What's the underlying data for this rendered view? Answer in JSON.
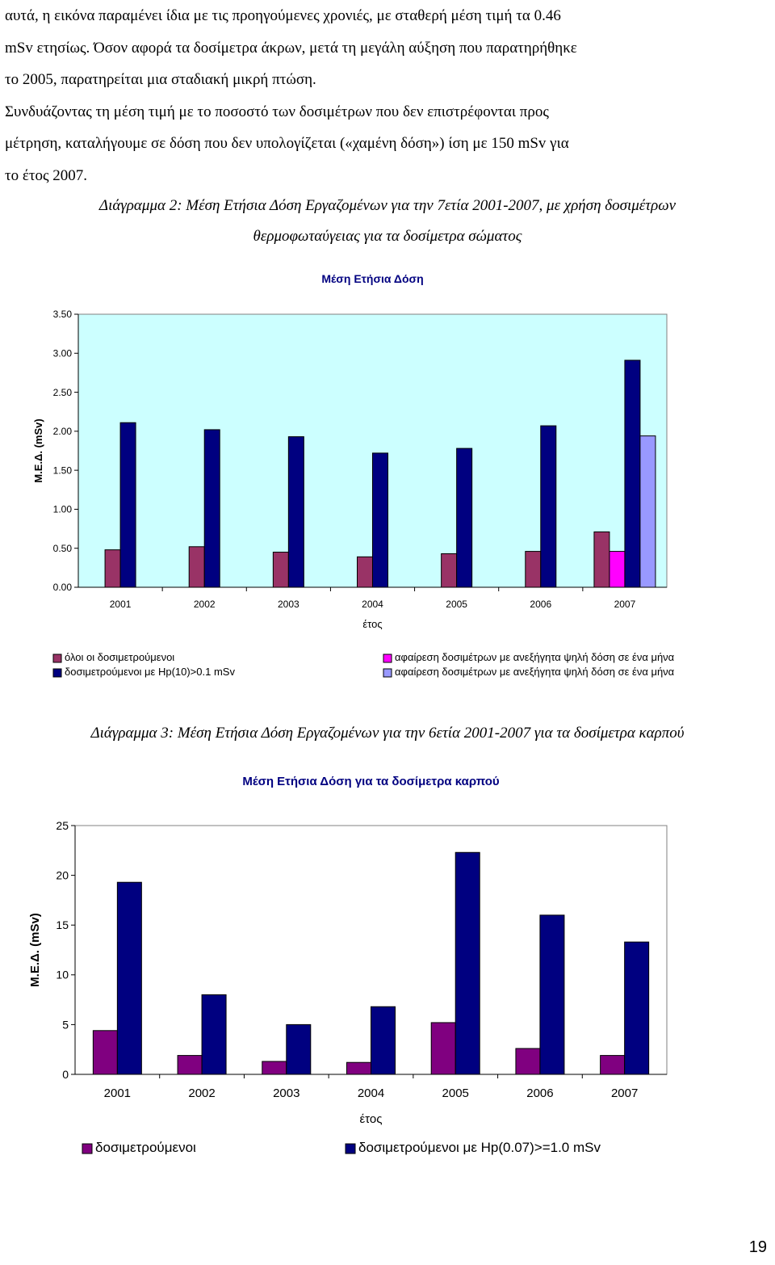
{
  "paragraph": {
    "lines": [
      "αυτά, η εικόνα παραμένει ίδια με τις προηγούμενες χρονιές, με σταθερή μέση τιμή τα 0.46",
      "mSv ετησίως. Όσον αφορά τα δοσίμετρα άκρων, μετά τη μεγάλη αύξηση που παρατηρήθηκε",
      "το 2005, παρατηρείται μια σταδιακή μικρή πτώση.",
      "Συνδυάζοντας τη μέση τιμή με το ποσοστό των δοσιμέτρων που δεν επιστρέφονται προς",
      "μέτρηση, καταλήγουμε σε δόση που δεν υπολογίζεται («χαμένη δόση») ίση με 150 mSv για",
      "το έτος 2007."
    ]
  },
  "caption1": {
    "line1": "Διάγραμμα 2: Μέση Ετήσια Δόση Εργαζομένων για την 7ετία 2001-2007, με χρήση δοσιμέτρων",
    "line2": "θερμοφωταύγειας για τα δοσίμετρα σώματος"
  },
  "caption2": {
    "text": "Διάγραμμα 3: Μέση Ετήσια Δόση Εργαζομένων για την 6ετία 2001-2007 για τα δοσίμετρα καρπού"
  },
  "page_number": "19",
  "chart_data": [
    {
      "type": "bar",
      "title": "Μέση Ετήσια Δόση",
      "xlabel": "έτος",
      "ylabel": "Μ.Ε.Δ. (mSv)",
      "categories": [
        "2001",
        "2002",
        "2003",
        "2004",
        "2005",
        "2006",
        "2007"
      ],
      "ylim": [
        0,
        3.5
      ],
      "yticks": [
        "0.00",
        "0.50",
        "1.00",
        "1.50",
        "2.00",
        "2.50",
        "3.00",
        "3.50"
      ],
      "plot_background": "#ccffff",
      "legend_position": "bottom",
      "series": [
        {
          "name": "όλοι οι δοσιμετρούμενοι",
          "color": "#993366",
          "values": [
            0.48,
            0.52,
            0.45,
            0.39,
            0.43,
            0.46,
            0.71
          ]
        },
        {
          "name": "αφαίρεση δοσιμέτρων με ανεξήγητα ψηλή δόση σε ένα μήνα",
          "color": "#ff00ff",
          "values": [
            null,
            null,
            null,
            null,
            null,
            null,
            0.46
          ]
        },
        {
          "name": "δοσιμετρούμενοι με Hp(10)>0.1 mSv",
          "color": "#000080",
          "values": [
            2.11,
            2.02,
            1.93,
            1.72,
            1.78,
            2.07,
            2.91
          ]
        },
        {
          "name": "αφαίρεση δοσιμέτρων με ανεξήγητα ψηλή δόση σε ένα μήνα",
          "color": "#9999ff",
          "values": [
            null,
            null,
            null,
            null,
            null,
            null,
            1.94
          ]
        }
      ]
    },
    {
      "type": "bar",
      "title": "Μέση Ετήσια Δόση για τα δοσίμετρα καρπού",
      "xlabel": "έτος",
      "ylabel": "Μ.Ε.Δ. (mSv)",
      "categories": [
        "2001",
        "2002",
        "2003",
        "2004",
        "2005",
        "2006",
        "2007"
      ],
      "ylim": [
        0,
        25
      ],
      "yticks": [
        "0",
        "5",
        "10",
        "15",
        "20",
        "25"
      ],
      "plot_background": "#ffffff",
      "legend_position": "bottom",
      "series": [
        {
          "name": "δοσιμετρούμενοι",
          "color": "#800080",
          "values": [
            4.4,
            1.9,
            1.3,
            1.2,
            5.2,
            2.6,
            1.9
          ]
        },
        {
          "name": "δοσιμετρούμενοι με Hp(0.07)>=1.0 mSv",
          "color": "#000080",
          "values": [
            19.3,
            8.0,
            5.0,
            6.8,
            22.3,
            16.0,
            13.3
          ]
        }
      ]
    }
  ]
}
